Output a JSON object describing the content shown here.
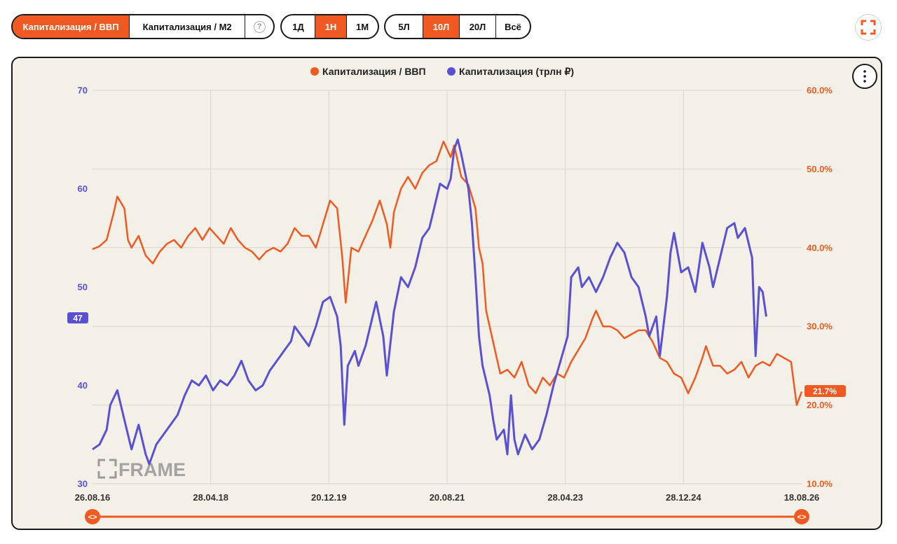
{
  "toolbar": {
    "metric_tabs": [
      {
        "label": "Капитализация / ВВП",
        "active": true
      },
      {
        "label": "Капитализация / М2",
        "active": false
      }
    ],
    "help_icon": "?",
    "step_tabs": [
      {
        "label": "1Д",
        "active": false
      },
      {
        "label": "1Н",
        "active": true
      },
      {
        "label": "1М",
        "active": false
      }
    ],
    "range_tabs": [
      {
        "label": "5Л",
        "active": false
      },
      {
        "label": "10Л",
        "active": true
      },
      {
        "label": "20Л",
        "active": false
      },
      {
        "label": "Всё",
        "active": false
      }
    ],
    "fullscreen_icon": "fullscreen-icon"
  },
  "colors": {
    "accent": "#f05a22",
    "series_blue": "#5a50d2",
    "panel_bg": "#f3f0e7"
  },
  "chart_data": {
    "type": "line",
    "legend": [
      "Капитализация / ВВП",
      "Капитализация (трлн ₽)"
    ],
    "legend_position": "top-center",
    "x_ticks": [
      "26.08.16",
      "28.04.18",
      "20.12.19",
      "20.08.21",
      "28.04.23",
      "28.12.24",
      "18.08.26"
    ],
    "left_axis": {
      "ticks": [
        "70",
        "60",
        "50",
        "40",
        "30"
      ],
      "range": [
        30,
        70
      ],
      "current_label": "47",
      "current_value": 47
    },
    "right_axis": {
      "ticks": [
        "60.0%",
        "50.0%",
        "40.0%",
        "30.0%",
        "20.0%",
        "10.0%"
      ],
      "range": [
        10,
        60
      ],
      "current_label": "21.7%",
      "current_value": 21.7
    },
    "grid": true,
    "watermark": "FRAME",
    "series": [
      {
        "name": "Капитализация / ВВП",
        "axis": "right",
        "color": "#f05a22",
        "points": [
          [
            0.0,
            39.8
          ],
          [
            0.01,
            40.2
          ],
          [
            0.02,
            41.0
          ],
          [
            0.03,
            44.5
          ],
          [
            0.035,
            46.5
          ],
          [
            0.045,
            45.0
          ],
          [
            0.05,
            41.0
          ],
          [
            0.055,
            40.0
          ],
          [
            0.065,
            41.5
          ],
          [
            0.075,
            39.0
          ],
          [
            0.085,
            38.0
          ],
          [
            0.095,
            39.5
          ],
          [
            0.105,
            40.5
          ],
          [
            0.115,
            41.0
          ],
          [
            0.125,
            40.0
          ],
          [
            0.135,
            41.5
          ],
          [
            0.145,
            42.5
          ],
          [
            0.155,
            41.0
          ],
          [
            0.165,
            42.5
          ],
          [
            0.175,
            41.5
          ],
          [
            0.185,
            40.5
          ],
          [
            0.195,
            42.5
          ],
          [
            0.205,
            41.0
          ],
          [
            0.215,
            40.0
          ],
          [
            0.225,
            39.5
          ],
          [
            0.235,
            38.5
          ],
          [
            0.245,
            39.5
          ],
          [
            0.255,
            40.0
          ],
          [
            0.265,
            39.5
          ],
          [
            0.275,
            40.5
          ],
          [
            0.285,
            42.5
          ],
          [
            0.295,
            41.5
          ],
          [
            0.305,
            41.5
          ],
          [
            0.315,
            40.0
          ],
          [
            0.325,
            43.0
          ],
          [
            0.335,
            46.0
          ],
          [
            0.345,
            45.0
          ],
          [
            0.352,
            39.0
          ],
          [
            0.357,
            33.0
          ],
          [
            0.365,
            40.0
          ],
          [
            0.375,
            39.5
          ],
          [
            0.385,
            41.5
          ],
          [
            0.395,
            43.5
          ],
          [
            0.405,
            46.0
          ],
          [
            0.415,
            43.0
          ],
          [
            0.42,
            40.0
          ],
          [
            0.425,
            44.5
          ],
          [
            0.435,
            47.5
          ],
          [
            0.445,
            49.0
          ],
          [
            0.455,
            47.5
          ],
          [
            0.465,
            49.5
          ],
          [
            0.475,
            50.5
          ],
          [
            0.485,
            51.0
          ],
          [
            0.495,
            53.5
          ],
          [
            0.5,
            52.5
          ],
          [
            0.505,
            51.5
          ],
          [
            0.51,
            53.0
          ],
          [
            0.515,
            51.0
          ],
          [
            0.52,
            49.0
          ],
          [
            0.53,
            48.0
          ],
          [
            0.54,
            45.0
          ],
          [
            0.545,
            40.0
          ],
          [
            0.55,
            38.0
          ],
          [
            0.555,
            32.0
          ],
          [
            0.56,
            30.0
          ],
          [
            0.57,
            26.0
          ],
          [
            0.575,
            24.0
          ],
          [
            0.585,
            24.5
          ],
          [
            0.595,
            23.5
          ],
          [
            0.605,
            25.5
          ],
          [
            0.615,
            22.5
          ],
          [
            0.625,
            21.5
          ],
          [
            0.635,
            23.5
          ],
          [
            0.645,
            22.5
          ],
          [
            0.655,
            24.0
          ],
          [
            0.665,
            23.5
          ],
          [
            0.675,
            25.5
          ],
          [
            0.685,
            27.0
          ],
          [
            0.695,
            28.5
          ],
          [
            0.705,
            31.0
          ],
          [
            0.71,
            32.0
          ],
          [
            0.72,
            30.0
          ],
          [
            0.73,
            30.0
          ],
          [
            0.74,
            29.5
          ],
          [
            0.75,
            28.5
          ],
          [
            0.76,
            29.0
          ],
          [
            0.77,
            29.5
          ],
          [
            0.78,
            29.5
          ],
          [
            0.79,
            28.0
          ],
          [
            0.8,
            26.0
          ],
          [
            0.81,
            25.5
          ],
          [
            0.82,
            24.0
          ],
          [
            0.83,
            23.5
          ],
          [
            0.84,
            21.5
          ],
          [
            0.85,
            23.5
          ],
          [
            0.86,
            26.0
          ],
          [
            0.865,
            27.5
          ],
          [
            0.875,
            25.0
          ],
          [
            0.885,
            25.0
          ],
          [
            0.895,
            24.0
          ],
          [
            0.905,
            24.5
          ],
          [
            0.915,
            25.5
          ],
          [
            0.925,
            23.5
          ],
          [
            0.935,
            25.0
          ],
          [
            0.945,
            25.5
          ],
          [
            0.955,
            25.0
          ],
          [
            0.965,
            26.5
          ],
          [
            0.975,
            26.0
          ],
          [
            0.985,
            25.5
          ],
          [
            0.993,
            20.0
          ],
          [
            1.0,
            21.7
          ]
        ]
      },
      {
        "name": "Капитализация (трлн ₽)",
        "axis": "left",
        "color": "#5a50d2",
        "points": [
          [
            0.0,
            33.5
          ],
          [
            0.01,
            34.0
          ],
          [
            0.02,
            35.5
          ],
          [
            0.025,
            38.0
          ],
          [
            0.035,
            39.5
          ],
          [
            0.045,
            36.5
          ],
          [
            0.055,
            33.5
          ],
          [
            0.065,
            36.0
          ],
          [
            0.075,
            33.0
          ],
          [
            0.08,
            32.0
          ],
          [
            0.09,
            34.0
          ],
          [
            0.1,
            35.0
          ],
          [
            0.11,
            36.0
          ],
          [
            0.12,
            37.0
          ],
          [
            0.13,
            39.0
          ],
          [
            0.14,
            40.5
          ],
          [
            0.15,
            40.0
          ],
          [
            0.16,
            41.0
          ],
          [
            0.17,
            39.5
          ],
          [
            0.18,
            40.5
          ],
          [
            0.19,
            40.0
          ],
          [
            0.2,
            41.0
          ],
          [
            0.21,
            42.5
          ],
          [
            0.22,
            40.5
          ],
          [
            0.23,
            39.5
          ],
          [
            0.24,
            40.0
          ],
          [
            0.25,
            41.5
          ],
          [
            0.26,
            42.5
          ],
          [
            0.27,
            43.5
          ],
          [
            0.28,
            44.5
          ],
          [
            0.285,
            46.0
          ],
          [
            0.295,
            45.0
          ],
          [
            0.305,
            44.0
          ],
          [
            0.315,
            46.0
          ],
          [
            0.325,
            48.5
          ],
          [
            0.335,
            49.0
          ],
          [
            0.345,
            47.0
          ],
          [
            0.35,
            44.0
          ],
          [
            0.355,
            36.0
          ],
          [
            0.36,
            42.0
          ],
          [
            0.37,
            43.5
          ],
          [
            0.375,
            42.0
          ],
          [
            0.385,
            44.0
          ],
          [
            0.395,
            47.0
          ],
          [
            0.4,
            48.5
          ],
          [
            0.41,
            45.0
          ],
          [
            0.415,
            41.0
          ],
          [
            0.425,
            47.5
          ],
          [
            0.435,
            51.0
          ],
          [
            0.445,
            50.0
          ],
          [
            0.455,
            52.0
          ],
          [
            0.465,
            55.0
          ],
          [
            0.475,
            56.0
          ],
          [
            0.485,
            59.0
          ],
          [
            0.49,
            60.5
          ],
          [
            0.5,
            60.0
          ],
          [
            0.505,
            61.0
          ],
          [
            0.51,
            64.0
          ],
          [
            0.515,
            65.0
          ],
          [
            0.52,
            63.5
          ],
          [
            0.53,
            60.0
          ],
          [
            0.535,
            56.5
          ],
          [
            0.54,
            51.0
          ],
          [
            0.545,
            45.0
          ],
          [
            0.55,
            42.0
          ],
          [
            0.56,
            39.0
          ],
          [
            0.565,
            36.5
          ],
          [
            0.57,
            34.5
          ],
          [
            0.58,
            35.5
          ],
          [
            0.585,
            33.0
          ],
          [
            0.59,
            39.0
          ],
          [
            0.595,
            34.5
          ],
          [
            0.6,
            33.0
          ],
          [
            0.61,
            35.0
          ],
          [
            0.62,
            33.5
          ],
          [
            0.63,
            34.5
          ],
          [
            0.64,
            37.0
          ],
          [
            0.65,
            40.0
          ],
          [
            0.66,
            42.5
          ],
          [
            0.67,
            45.0
          ],
          [
            0.675,
            51.0
          ],
          [
            0.685,
            52.0
          ],
          [
            0.69,
            50.0
          ],
          [
            0.7,
            51.0
          ],
          [
            0.71,
            49.5
          ],
          [
            0.72,
            51.0
          ],
          [
            0.73,
            53.0
          ],
          [
            0.74,
            54.5
          ],
          [
            0.75,
            53.5
          ],
          [
            0.76,
            51.0
          ],
          [
            0.77,
            50.0
          ],
          [
            0.78,
            47.0
          ],
          [
            0.785,
            45.0
          ],
          [
            0.795,
            47.0
          ],
          [
            0.8,
            43.0
          ],
          [
            0.81,
            49.0
          ],
          [
            0.815,
            53.5
          ],
          [
            0.82,
            55.5
          ],
          [
            0.83,
            51.5
          ],
          [
            0.84,
            52.0
          ],
          [
            0.85,
            49.5
          ],
          [
            0.86,
            54.5
          ],
          [
            0.87,
            52.0
          ],
          [
            0.875,
            50.0
          ],
          [
            0.885,
            53.0
          ],
          [
            0.895,
            56.0
          ],
          [
            0.905,
            56.5
          ],
          [
            0.91,
            55.0
          ],
          [
            0.92,
            56.0
          ],
          [
            0.93,
            53.0
          ],
          [
            0.935,
            43.0
          ],
          [
            0.94,
            50.0
          ],
          [
            0.945,
            49.5
          ],
          [
            0.95,
            47.0
          ]
        ]
      }
    ],
    "navigator": {
      "left_handle": "<>",
      "right_handle": "<>"
    }
  }
}
